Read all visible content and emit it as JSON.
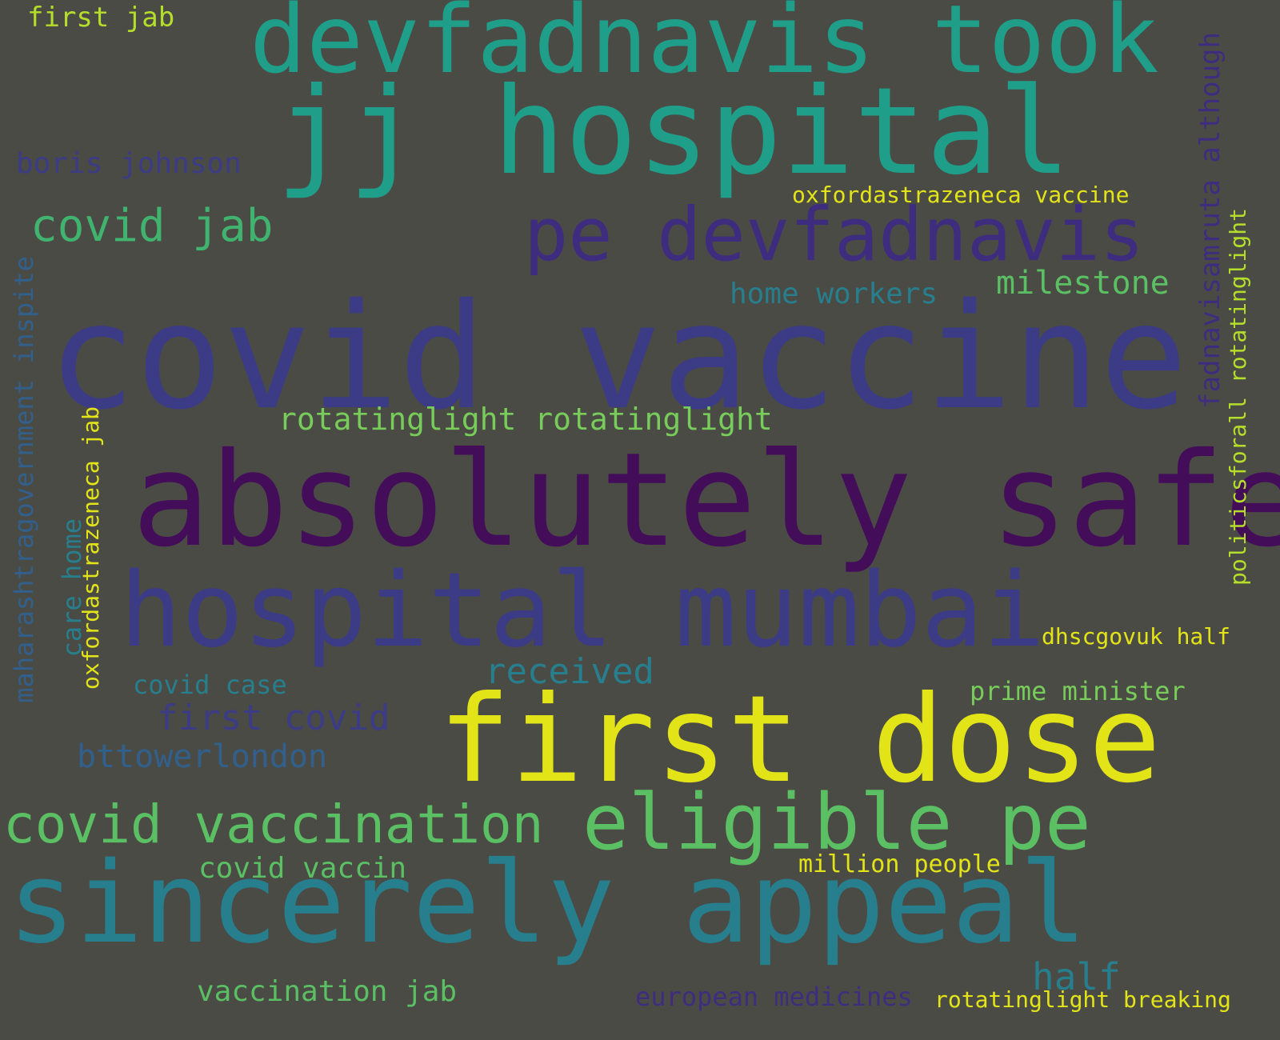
{
  "palette": {
    "background": "#4b4b46",
    "dark_purple": "#440d59",
    "indigo": "#3b3b86",
    "blue": "#32608c",
    "teal_blue": "#277f8e",
    "teal": "#1f9e89",
    "green": "#40b46e",
    "light_green": "#78cc5a",
    "yellow": "#e3e418"
  },
  "words": [
    "covid vaccine",
    "absolutely safe",
    "first dose",
    "hospital mumbai",
    "sincerely appeal",
    "jj hospital",
    "devfadnavis took",
    "pe devfadnavis",
    "eligible pe",
    "covid vaccination",
    "covid jab",
    "rotatinglight rotatinglight",
    "bttowerlondon",
    "first jab",
    "boris johnson",
    "home workers",
    "milestone",
    "oxfordastrazeneca vaccine",
    "covid vaccin",
    "vaccination jab",
    "european medicines",
    "rotatinglight breaking",
    "million people",
    "prime minister",
    "dhscgovuk half",
    "half",
    "received",
    "first covid",
    "covid case",
    "fadnavisamruta although",
    "politicsforall rotatinglight",
    "maharashtragovernment inspite",
    "oxfordastrazeneca jab",
    "care home"
  ]
}
